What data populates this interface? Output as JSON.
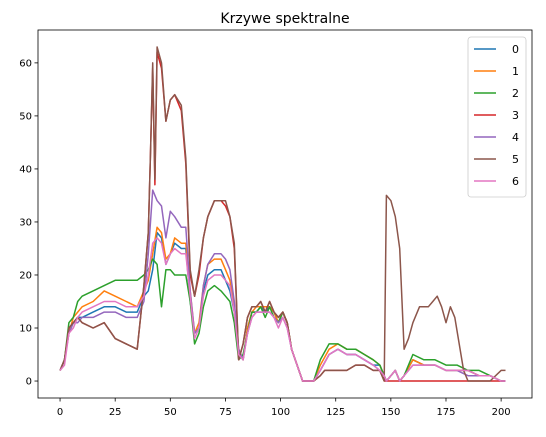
{
  "chart_data": {
    "type": "line",
    "title": "Krzywe spektralne",
    "xlabel": "",
    "ylabel": "",
    "xlim": [
      -10,
      214
    ],
    "ylim": [
      -3.2,
      66.2
    ],
    "xticks": [
      0,
      25,
      50,
      75,
      100,
      125,
      150,
      175,
      200
    ],
    "yticks": [
      0,
      10,
      20,
      30,
      40,
      50,
      60
    ],
    "grid": false,
    "legend_position": "top-right",
    "series": [
      {
        "name": "0",
        "color": "#1f77b4",
        "x": [
          0,
          2,
          4,
          6,
          8,
          10,
          15,
          20,
          25,
          30,
          35,
          38,
          40,
          42,
          44,
          46,
          48,
          50,
          52,
          55,
          57,
          59,
          61,
          63,
          65,
          67,
          70,
          73,
          75,
          77,
          79,
          81,
          83,
          85,
          87,
          89,
          91,
          93,
          95,
          97,
          99,
          101,
          103,
          105,
          110,
          115,
          118,
          122,
          126,
          130,
          134,
          138,
          142,
          145,
          147,
          148,
          150,
          152,
          154,
          156,
          160,
          165,
          170,
          175,
          180,
          185,
          190,
          195,
          200,
          202
        ],
        "y": [
          2,
          4,
          9,
          11,
          12,
          12,
          13,
          14,
          14,
          13,
          13,
          16,
          17,
          21,
          28,
          27,
          22,
          24,
          26,
          25,
          25,
          15,
          9,
          10,
          17,
          20,
          21,
          21,
          19,
          17,
          13,
          5,
          4,
          10,
          13,
          13,
          14,
          13,
          14,
          13,
          11,
          13,
          11,
          6,
          0,
          0,
          2,
          5,
          6,
          5,
          5,
          4,
          3,
          3,
          1,
          0,
          1,
          2,
          0,
          1,
          4,
          3,
          3,
          2,
          2,
          2,
          1,
          1,
          0,
          0
        ]
      },
      {
        "name": "1",
        "color": "#ff7f0e",
        "x": [
          0,
          2,
          4,
          6,
          8,
          10,
          15,
          20,
          25,
          30,
          35,
          38,
          40,
          42,
          44,
          46,
          48,
          50,
          52,
          55,
          57,
          59,
          61,
          63,
          65,
          67,
          70,
          73,
          75,
          77,
          79,
          81,
          83,
          85,
          87,
          89,
          91,
          93,
          95,
          97,
          99,
          101,
          103,
          105,
          110,
          115,
          118,
          122,
          126,
          130,
          134,
          138,
          142,
          145,
          147,
          148,
          150,
          152,
          154,
          156,
          160,
          165,
          170,
          175,
          180,
          185,
          190,
          195,
          200,
          202
        ],
        "y": [
          2,
          4,
          9,
          12,
          13,
          14,
          15,
          17,
          16,
          15,
          14,
          17,
          19,
          24,
          29,
          28,
          23,
          24,
          27,
          26,
          26,
          17,
          9,
          11,
          18,
          22,
          23,
          23,
          21,
          19,
          14,
          6,
          4,
          10,
          13,
          14,
          14,
          14,
          14,
          13,
          11,
          13,
          11,
          6,
          0,
          0,
          3,
          6,
          7,
          6,
          6,
          5,
          4,
          3,
          1,
          0,
          1,
          2,
          0,
          1,
          4,
          3,
          3,
          2,
          2,
          2,
          1,
          1,
          0,
          0
        ]
      },
      {
        "name": "2",
        "color": "#2ca02c",
        "x": [
          0,
          2,
          4,
          6,
          8,
          10,
          15,
          20,
          25,
          30,
          35,
          38,
          40,
          42,
          44,
          46,
          48,
          50,
          52,
          55,
          57,
          59,
          61,
          63,
          65,
          67,
          70,
          73,
          75,
          77,
          79,
          81,
          83,
          85,
          87,
          89,
          91,
          93,
          95,
          97,
          99,
          101,
          103,
          105,
          110,
          115,
          118,
          122,
          126,
          130,
          134,
          138,
          142,
          145,
          147,
          148,
          150,
          152,
          154,
          156,
          160,
          165,
          170,
          175,
          180,
          185,
          190,
          195,
          200,
          202
        ],
        "y": [
          2,
          4,
          11,
          12,
          15,
          16,
          17,
          18,
          19,
          19,
          19,
          20,
          21,
          23,
          22,
          14,
          21,
          21,
          20,
          20,
          20,
          15,
          7,
          9,
          14,
          17,
          18,
          17,
          16,
          15,
          11,
          4,
          5,
          9,
          13,
          13,
          14,
          12,
          14,
          12,
          11,
          13,
          11,
          6,
          0,
          0,
          4,
          7,
          7,
          6,
          6,
          5,
          4,
          3,
          1,
          0,
          1,
          2,
          0,
          1,
          5,
          4,
          4,
          3,
          3,
          2,
          2,
          1,
          0,
          0
        ]
      },
      {
        "name": "3",
        "color": "#d62728",
        "x": [
          0,
          2,
          4,
          6,
          8,
          10,
          15,
          20,
          25,
          30,
          35,
          38,
          40,
          41,
          42,
          43,
          44,
          46,
          48,
          50,
          52,
          55,
          57,
          59,
          61,
          63,
          65,
          67,
          70,
          73,
          75,
          77,
          79,
          81,
          83,
          85,
          87,
          89,
          91,
          93,
          95,
          97,
          99,
          101,
          103,
          105,
          110,
          115,
          118,
          120,
          125,
          130,
          134,
          138,
          142,
          145,
          147,
          148,
          150,
          155,
          160,
          165,
          170,
          175,
          180,
          185,
          190,
          195,
          200,
          202
        ],
        "y": [
          2,
          4,
          10,
          11,
          12,
          11,
          10,
          11,
          8,
          7,
          6,
          18,
          28,
          43,
          59,
          37,
          62,
          59,
          49,
          53,
          54,
          51,
          41,
          20,
          16,
          20,
          27,
          31,
          34,
          34,
          33,
          31,
          25,
          4,
          7,
          12,
          14,
          14,
          15,
          13,
          15,
          13,
          12,
          13,
          11,
          6,
          0,
          0,
          1,
          2,
          2,
          2,
          3,
          3,
          2,
          2,
          0,
          0,
          0,
          0,
          0,
          0,
          0,
          0,
          0,
          0,
          0,
          0,
          0,
          0
        ]
      },
      {
        "name": "4",
        "color": "#9467bd",
        "x": [
          0,
          2,
          4,
          6,
          8,
          10,
          15,
          20,
          25,
          30,
          35,
          38,
          40,
          42,
          44,
          46,
          48,
          50,
          52,
          55,
          57,
          59,
          61,
          63,
          65,
          67,
          70,
          73,
          75,
          77,
          79,
          81,
          83,
          85,
          87,
          89,
          91,
          93,
          95,
          97,
          99,
          101,
          103,
          105,
          110,
          115,
          118,
          122,
          126,
          130,
          134,
          138,
          142,
          145,
          147,
          148,
          150,
          152,
          154,
          156,
          160,
          165,
          170,
          175,
          180,
          185,
          190,
          195,
          200,
          202
        ],
        "y": [
          2,
          4,
          9,
          11,
          11,
          12,
          12,
          13,
          13,
          12,
          12,
          15,
          24,
          36,
          34,
          33,
          27,
          32,
          31,
          29,
          29,
          17,
          9,
          10,
          18,
          22,
          24,
          24,
          23,
          21,
          15,
          6,
          4,
          9,
          12,
          13,
          13,
          13,
          13,
          12,
          11,
          12,
          10,
          6,
          0,
          0,
          2,
          5,
          6,
          5,
          5,
          4,
          3,
          2,
          1,
          0,
          1,
          2,
          0,
          1,
          3,
          3,
          3,
          2,
          2,
          1,
          1,
          1,
          0,
          0
        ]
      },
      {
        "name": "5",
        "color": "#8c564b",
        "x": [
          0,
          2,
          4,
          6,
          8,
          10,
          15,
          20,
          25,
          30,
          35,
          38,
          40,
          41,
          42,
          43,
          44,
          46,
          48,
          50,
          52,
          55,
          57,
          59,
          61,
          63,
          65,
          67,
          70,
          73,
          75,
          77,
          79,
          81,
          83,
          85,
          87,
          89,
          91,
          93,
          95,
          97,
          99,
          101,
          103,
          105,
          110,
          115,
          118,
          120,
          125,
          130,
          134,
          138,
          142,
          145,
          146,
          147,
          148,
          150,
          152,
          154,
          156,
          158,
          160,
          163,
          165,
          167,
          169,
          171,
          173,
          175,
          177,
          179,
          181,
          183,
          185,
          187,
          190,
          195,
          200,
          202
        ],
        "y": [
          2,
          4,
          10,
          11,
          12,
          11,
          10,
          11,
          8,
          7,
          6,
          18,
          28,
          43,
          60,
          38,
          63,
          60,
          49,
          53,
          54,
          52,
          42,
          21,
          16,
          21,
          27,
          31,
          34,
          34,
          34,
          31,
          26,
          4,
          7,
          12,
          14,
          14,
          15,
          13,
          15,
          13,
          12,
          13,
          11,
          6,
          0,
          0,
          1,
          2,
          2,
          2,
          3,
          3,
          2,
          2,
          1,
          0,
          35,
          34,
          31,
          25,
          6,
          8,
          11,
          14,
          14,
          14,
          15,
          16,
          14,
          11,
          14,
          12,
          7,
          2,
          0,
          0,
          0,
          0,
          2,
          2
        ]
      },
      {
        "name": "6",
        "color": "#e377c2",
        "x": [
          0,
          2,
          4,
          6,
          8,
          10,
          15,
          20,
          25,
          30,
          35,
          38,
          40,
          42,
          44,
          46,
          48,
          50,
          52,
          55,
          57,
          59,
          61,
          63,
          65,
          67,
          70,
          73,
          75,
          77,
          79,
          81,
          83,
          85,
          87,
          89,
          91,
          93,
          95,
          97,
          99,
          101,
          103,
          105,
          110,
          115,
          118,
          122,
          126,
          130,
          134,
          138,
          142,
          145,
          147,
          148,
          150,
          152,
          154,
          156,
          160,
          165,
          170,
          175,
          180,
          185,
          190,
          195,
          200,
          202
        ],
        "y": [
          2,
          3,
          9,
          10,
          12,
          13,
          14,
          15,
          15,
          14,
          14,
          16,
          20,
          26,
          27,
          26,
          22,
          24,
          25,
          24,
          24,
          16,
          8,
          10,
          16,
          19,
          20,
          20,
          19,
          18,
          13,
          5,
          4,
          9,
          12,
          13,
          13,
          13,
          13,
          12,
          10,
          12,
          10,
          6,
          0,
          0,
          2,
          5,
          6,
          5,
          5,
          4,
          3,
          2,
          1,
          0,
          1,
          2,
          0,
          1,
          3,
          3,
          3,
          2,
          2,
          2,
          1,
          1,
          0,
          0
        ]
      }
    ]
  }
}
